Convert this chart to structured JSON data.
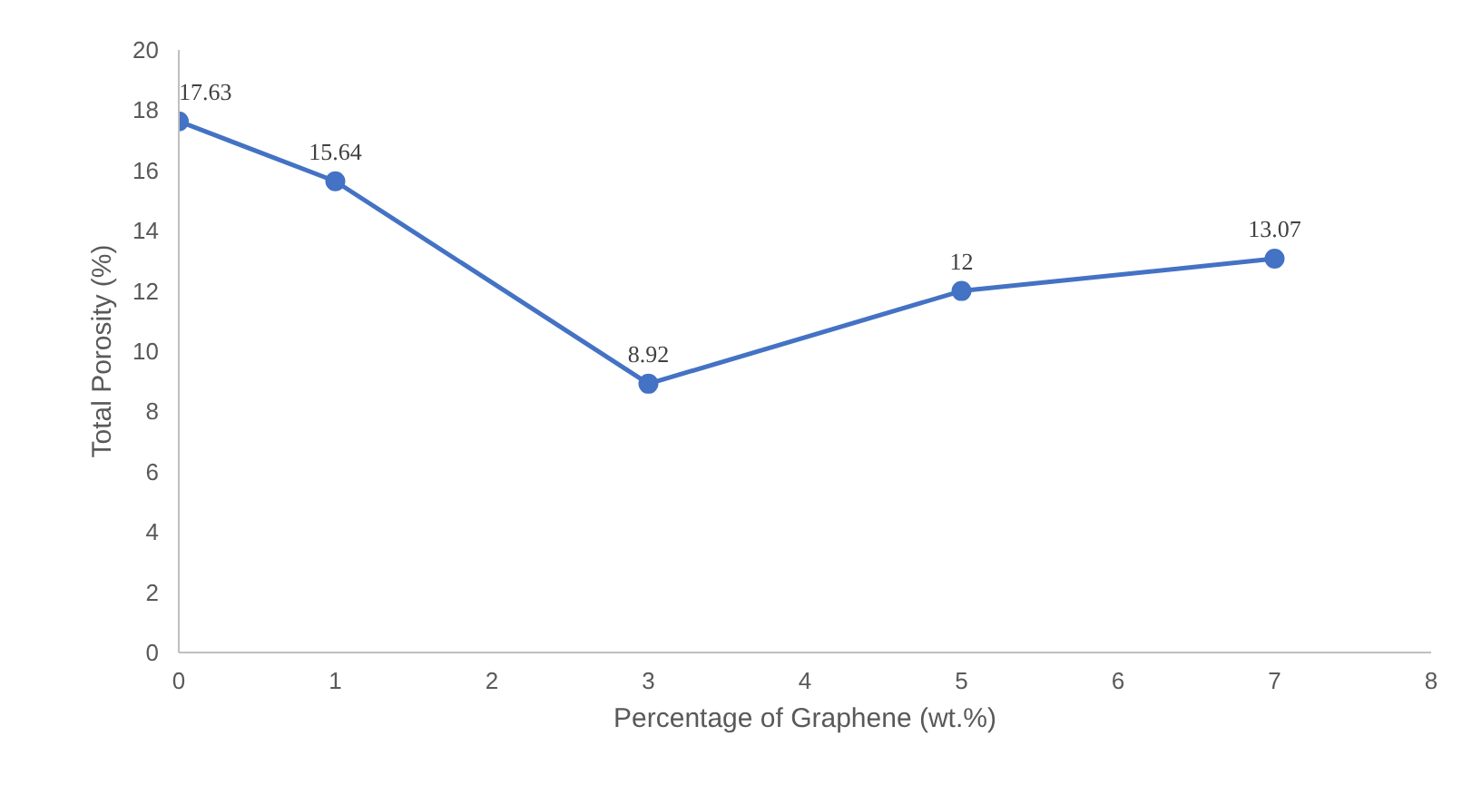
{
  "chart_data": {
    "type": "line",
    "xlabel": "Percentage of Graphene (wt.%)",
    "ylabel": "Total Porosity (%)",
    "x": [
      0,
      1,
      3,
      5,
      7
    ],
    "series": [
      {
        "color": "#4472c4",
        "values": [
          17.63,
          15.64,
          8.92,
          12,
          13.07
        ]
      }
    ],
    "xlim": [
      0,
      8
    ],
    "xticks": [
      0,
      1,
      2,
      3,
      4,
      5,
      6,
      7,
      8
    ],
    "ylim": [
      0,
      20
    ],
    "yticks": [
      0,
      2,
      4,
      6,
      8,
      10,
      12,
      14,
      16,
      18,
      20
    ],
    "grid": false,
    "marker": "circle",
    "line_style": "solid",
    "data_labels": true
  }
}
